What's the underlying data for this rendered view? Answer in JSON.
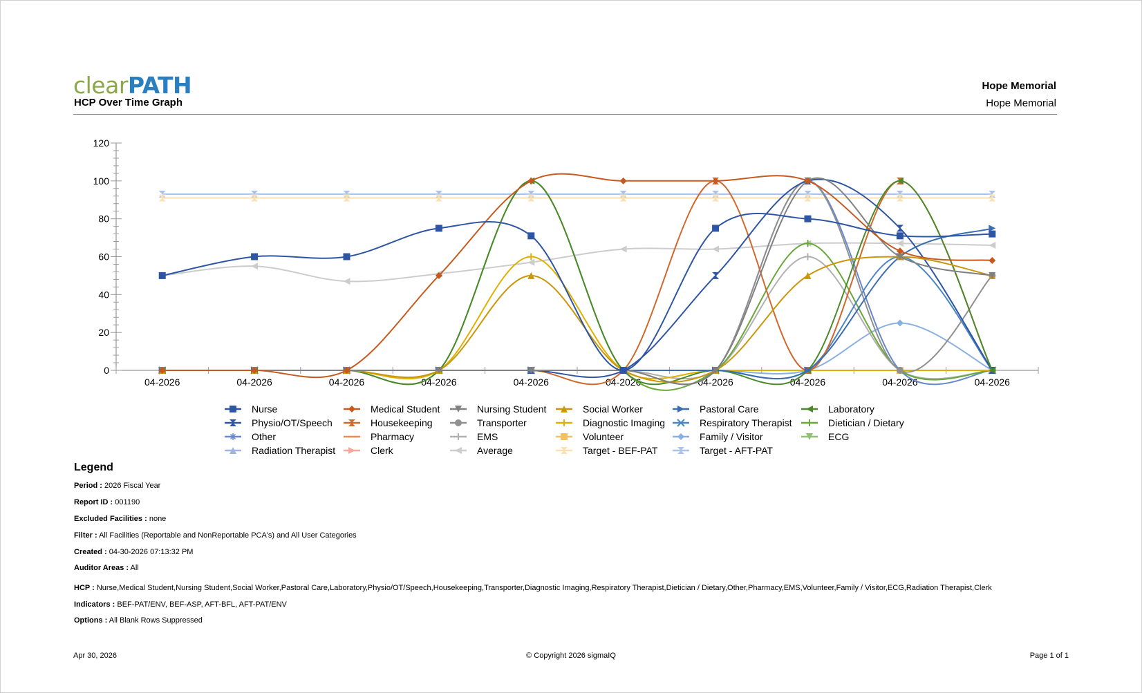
{
  "header": {
    "logo_part1": "clear",
    "logo_part2": "PATH",
    "title": "HCP Over Time Graph",
    "facility_bold": "Hope Memorial",
    "facility": "Hope Memorial"
  },
  "chart_data": {
    "type": "line",
    "title": "",
    "xlabel": "",
    "ylabel": "",
    "ylim": [
      0,
      120
    ],
    "yticks": [
      0,
      20,
      40,
      60,
      80,
      100,
      120
    ],
    "categories": [
      "04-2026",
      "04-2026",
      "04-2026",
      "04-2026",
      "04-2026",
      "04-2026",
      "04-2026",
      "04-2026",
      "04-2026",
      "04-2026"
    ],
    "legend_position": "bottom",
    "grid": false,
    "series": [
      {
        "name": "Nurse",
        "color": "#2e55a3",
        "marker": "square",
        "values": [
          50,
          60,
          60,
          75,
          71,
          0,
          75,
          80,
          71,
          72
        ]
      },
      {
        "name": "Medical Student",
        "color": "#c65a1e",
        "marker": "diamond",
        "values": [
          0,
          0,
          0,
          50,
          100,
          100,
          100,
          100,
          63,
          58
        ]
      },
      {
        "name": "Nursing Student",
        "color": "#808080",
        "marker": "triangle-down",
        "values": [
          0,
          0,
          0,
          0,
          0,
          0,
          0,
          100,
          60,
          50
        ]
      },
      {
        "name": "Social Worker",
        "color": "#c9960c",
        "marker": "triangle-up",
        "values": [
          0,
          0,
          0,
          0,
          50,
          0,
          0,
          50,
          60,
          50
        ]
      },
      {
        "name": "Pastoral Care",
        "color": "#3b6eb0",
        "marker": "triangle-right",
        "values": [
          0,
          0,
          0,
          0,
          0,
          0,
          0,
          0,
          60,
          75
        ]
      },
      {
        "name": "Laboratory",
        "color": "#4a8a2a",
        "marker": "triangle-left",
        "values": [
          0,
          0,
          0,
          0,
          100,
          0,
          0,
          0,
          100,
          0
        ]
      },
      {
        "name": "Physio/OT/Speech",
        "color": "#2e55a3",
        "marker": "bowtie",
        "values": [
          0,
          0,
          0,
          0,
          0,
          0,
          50,
          100,
          75,
          0
        ]
      },
      {
        "name": "Housekeeping",
        "color": "#d0682c",
        "marker": "hourglass",
        "values": [
          0,
          0,
          0,
          0,
          0,
          0,
          100,
          0,
          100,
          0
        ]
      },
      {
        "name": "Transporter",
        "color": "#909090",
        "marker": "circle",
        "values": [
          0,
          0,
          0,
          0,
          0,
          0,
          0,
          100,
          0,
          50
        ]
      },
      {
        "name": "Diagnostic Imaging",
        "color": "#e0b000",
        "marker": "plus",
        "values": [
          0,
          0,
          0,
          0,
          60,
          0,
          0,
          0,
          0,
          0
        ]
      },
      {
        "name": "Respiratory Therapist",
        "color": "#4a86c0",
        "marker": "x",
        "values": [
          0,
          0,
          0,
          0,
          0,
          0,
          0,
          0,
          60,
          0
        ]
      },
      {
        "name": "Dietician / Dietary",
        "color": "#6aa83a",
        "marker": "plus",
        "values": [
          0,
          0,
          0,
          0,
          100,
          0,
          0,
          67,
          0,
          0
        ]
      },
      {
        "name": "Other",
        "color": "#6688cc",
        "marker": "star",
        "values": [
          0,
          0,
          0,
          0,
          0,
          0,
          0,
          100,
          0,
          0
        ]
      },
      {
        "name": "Pharmacy",
        "color": "#f08a50",
        "marker": "none",
        "values": [
          0,
          0,
          0,
          0,
          0,
          0,
          0,
          0,
          0,
          0
        ]
      },
      {
        "name": "EMS",
        "color": "#b0b0b0",
        "marker": "plus",
        "values": [
          0,
          0,
          0,
          0,
          0,
          0,
          0,
          60,
          0,
          0
        ]
      },
      {
        "name": "Volunteer",
        "color": "#f5c060",
        "marker": "square",
        "values": [
          0,
          0,
          0,
          0,
          0,
          0,
          0,
          0,
          0,
          0
        ]
      },
      {
        "name": "Family / Visitor",
        "color": "#8ab0e0",
        "marker": "diamond",
        "values": [
          0,
          0,
          0,
          0,
          0,
          0,
          0,
          0,
          25,
          0
        ]
      },
      {
        "name": "ECG",
        "color": "#90c070",
        "marker": "triangle-down",
        "values": [
          0,
          0,
          0,
          0,
          0,
          0,
          0,
          0,
          0,
          0
        ]
      },
      {
        "name": "Radiation Therapist",
        "color": "#a0b4e0",
        "marker": "triangle-up",
        "values": [
          0,
          0,
          0,
          0,
          0,
          0,
          0,
          0,
          0,
          0
        ]
      },
      {
        "name": "Clerk",
        "color": "#f4a89a",
        "marker": "triangle-right",
        "values": [
          0,
          0,
          0,
          0,
          0,
          0,
          0,
          0,
          0,
          0
        ]
      },
      {
        "name": "Average",
        "color": "#cccccc",
        "marker": "triangle-left",
        "values": [
          50,
          55,
          47,
          51,
          57,
          64,
          64,
          67,
          67,
          66
        ]
      },
      {
        "name": "Target - BEF-PAT",
        "color": "#fde0b0",
        "marker": "bowtie",
        "values": [
          91,
          91,
          91,
          91,
          91,
          91,
          91,
          91,
          91,
          91
        ]
      },
      {
        "name": "Target - AFT-PAT",
        "color": "#a8c4ec",
        "marker": "hourglass",
        "values": [
          93,
          93,
          93,
          93,
          93,
          93,
          93,
          93,
          93,
          93
        ]
      }
    ]
  },
  "legend_info": {
    "heading": "Legend",
    "rows": [
      {
        "label": "Period :",
        "value": "2026 Fiscal Year"
      },
      {
        "label": "Report ID :",
        "value": "001190"
      },
      {
        "label": "Excluded Facilities :",
        "value": "none"
      },
      {
        "label": "Filter :",
        "value": "All Facilities (Reportable and NonReportable PCA's) and All User Categories"
      },
      {
        "label": "Created :",
        "value": "04-30-2026 07:13:32 PM"
      },
      {
        "label": "Auditor Areas :",
        "value": "All"
      },
      {
        "label": "HCP :",
        "value": "Nurse,Medical Student,Nursing Student,Social Worker,Pastoral Care,Laboratory,Physio/OT/Speech,Housekeeping,Transporter,Diagnostic Imaging,Respiratory Therapist,Dietician / Dietary,Other,Pharmacy,EMS,Volunteer,Family / Visitor,ECG,Radiation Therapist,Clerk"
      },
      {
        "label": "Indicators :",
        "value": "BEF-PAT/ENV, BEF-ASP, AFT-BFL, AFT-PAT/ENV"
      },
      {
        "label": "Options :",
        "value": "All Blank Rows Suppressed"
      }
    ]
  },
  "footer": {
    "date": "Apr 30, 2026",
    "copyright": "© Copyright 2026 sigmaIQ",
    "page": "Page 1 of 1"
  }
}
